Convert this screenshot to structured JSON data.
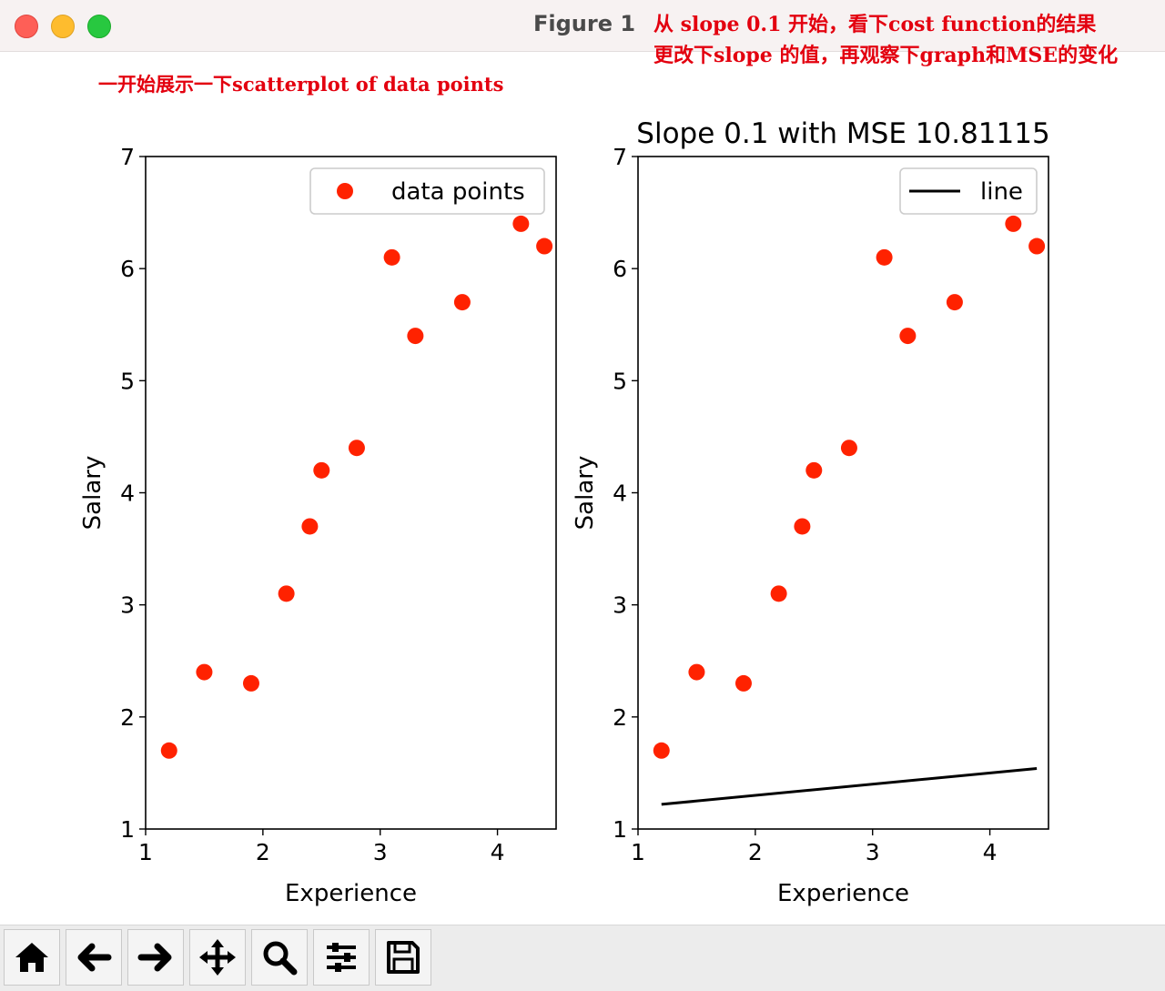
{
  "window": {
    "title": "Figure 1"
  },
  "notes": {
    "top_line1": "从 slope 0.1 开始，看下cost function的结果",
    "top_line2": "更改下slope 的值，再观察下graph和MSE的变化",
    "left": "一开始展示一下scatterplot of data points"
  },
  "toolbar": {
    "buttons": [
      {
        "icon": "home-icon"
      },
      {
        "icon": "arrow-left-icon"
      },
      {
        "icon": "arrow-right-icon"
      },
      {
        "icon": "move-icon"
      },
      {
        "icon": "zoom-icon"
      },
      {
        "icon": "sliders-icon"
      },
      {
        "icon": "save-icon"
      }
    ]
  },
  "colors": {
    "points": "#ff2200",
    "line": "#000000"
  },
  "chart_data": [
    {
      "type": "scatter",
      "title": "",
      "xlabel": "Experience",
      "ylabel": "Salary",
      "xlim": [
        1,
        4.5
      ],
      "ylim": [
        1,
        7
      ],
      "xticks": [
        1,
        2,
        3,
        4
      ],
      "yticks": [
        1,
        2,
        3,
        4,
        5,
        6,
        7
      ],
      "legend": "top-right",
      "series": [
        {
          "name": "data points",
          "x": [
            1.2,
            1.5,
            1.9,
            2.2,
            2.4,
            2.5,
            2.8,
            3.1,
            3.3,
            3.7,
            4.2,
            4.4
          ],
          "y": [
            1.7,
            2.4,
            2.3,
            3.1,
            3.7,
            4.2,
            4.4,
            6.1,
            5.4,
            5.7,
            6.4,
            6.2
          ]
        }
      ]
    },
    {
      "type": "scatter",
      "title": "Slope 0.1 with MSE 10.81115",
      "xlabel": "Experience",
      "ylabel": "Salary",
      "xlim": [
        1,
        4.5
      ],
      "ylim": [
        1,
        7
      ],
      "xticks": [
        1,
        2,
        3,
        4
      ],
      "yticks": [
        1,
        2,
        3,
        4,
        5,
        6,
        7
      ],
      "legend": "top-right",
      "series": [
        {
          "x": [
            1.2,
            1.5,
            1.9,
            2.2,
            2.4,
            2.5,
            2.8,
            3.1,
            3.3,
            3.7,
            4.2,
            4.4
          ],
          "y": [
            1.7,
            2.4,
            2.3,
            3.1,
            3.7,
            4.2,
            4.4,
            6.1,
            5.4,
            5.7,
            6.4,
            6.2
          ]
        }
      ],
      "line": {
        "name": "line",
        "x": [
          1.2,
          4.4
        ],
        "y": [
          1.22,
          1.54
        ]
      }
    }
  ]
}
